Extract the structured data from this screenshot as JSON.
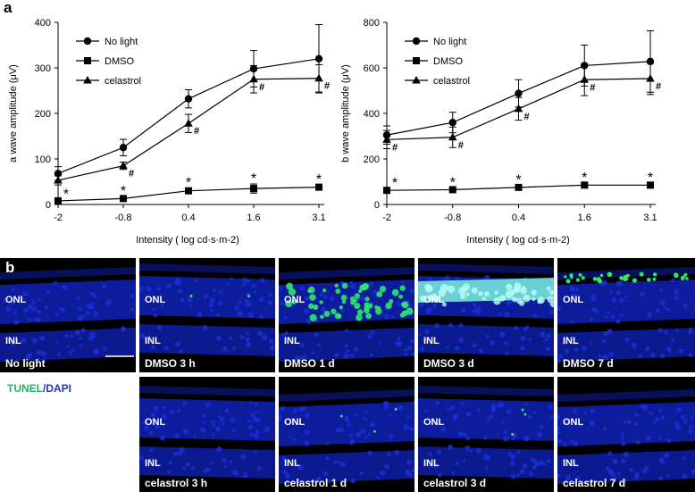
{
  "panel_a_label": "a",
  "panel_b_label": "b",
  "chart_data": [
    {
      "type": "line",
      "id": "a-wave",
      "ylabel": "a wave amplitude (μV)",
      "xlabel": "Intensity ( log cd·s·m-2)",
      "categories": [
        "-2",
        "-0.8",
        "0.4",
        "1.6",
        "3.1"
      ],
      "ylim": [
        0,
        400
      ],
      "yticks": [
        "0",
        "100",
        "200",
        "300",
        "400"
      ],
      "legend_position": "top-left",
      "series": [
        {
          "name": "No light",
          "marker": "circle",
          "values": [
            68,
            125,
            232,
            298,
            320
          ],
          "errors": [
            15,
            18,
            20,
            40,
            75
          ]
        },
        {
          "name": "DMSO",
          "marker": "square",
          "values": [
            8,
            13,
            30,
            35,
            38
          ],
          "errors": [
            3,
            5,
            6,
            10,
            5
          ]
        },
        {
          "name": "celastrol",
          "marker": "triangle",
          "values": [
            53,
            85,
            178,
            275,
            277
          ],
          "errors": [
            10,
            8,
            20,
            30,
            30
          ]
        }
      ],
      "hash_marks": [
        1,
        2,
        3,
        4
      ],
      "star_marks": [
        0,
        1,
        2,
        3,
        4
      ]
    },
    {
      "type": "line",
      "id": "b-wave",
      "ylabel": "b wave amplitude (μV)",
      "xlabel": "Intensity ( log cd·s·m-2)",
      "categories": [
        "-2",
        "-0.8",
        "0.4",
        "1.6",
        "3.1"
      ],
      "ylim": [
        0,
        800
      ],
      "yticks": [
        "0",
        "200",
        "400",
        "600",
        "800"
      ],
      "legend_position": "top-left",
      "series": [
        {
          "name": "No light",
          "marker": "circle",
          "values": [
            305,
            360,
            488,
            610,
            628
          ],
          "errors": [
            40,
            45,
            60,
            90,
            135
          ]
        },
        {
          "name": "DMSO",
          "marker": "square",
          "values": [
            62,
            65,
            75,
            85,
            85
          ],
          "errors": [
            8,
            8,
            10,
            10,
            10
          ]
        },
        {
          "name": "celastrol",
          "marker": "triangle",
          "values": [
            285,
            295,
            420,
            548,
            553
          ],
          "errors": [
            40,
            45,
            50,
            70,
            70
          ]
        }
      ],
      "hash_marks": [
        0,
        1,
        2,
        3,
        4
      ],
      "star_marks": [
        0,
        1,
        2,
        3,
        4
      ]
    }
  ],
  "annotations": {
    "hash": "#",
    "star": "*"
  },
  "stain_legend": {
    "tunel": "TUNEL",
    "separator": "/",
    "dapi": "DAPI"
  },
  "layers": {
    "onl": "ONL",
    "inl": "INL"
  },
  "micrographs": {
    "top": [
      {
        "label": "No light",
        "green": "none"
      },
      {
        "label": "DMSO 3 h",
        "green": "sparse"
      },
      {
        "label": "DMSO  1 d",
        "green": "many"
      },
      {
        "label": "DMSO 3 d",
        "green": "band"
      },
      {
        "label": "DMSO  7 d",
        "green": "edge"
      }
    ],
    "bottom": [
      {
        "label": "celastrol 3 h",
        "green": "none"
      },
      {
        "label": "celastrol 1 d",
        "green": "few"
      },
      {
        "label": "celastrol 3 d",
        "green": "few"
      },
      {
        "label": "celastrol  7 d",
        "green": "none"
      }
    ]
  },
  "colors": {
    "dapi": "#1a2fd6",
    "tunel": "#2fe86a",
    "background": "#000000"
  }
}
